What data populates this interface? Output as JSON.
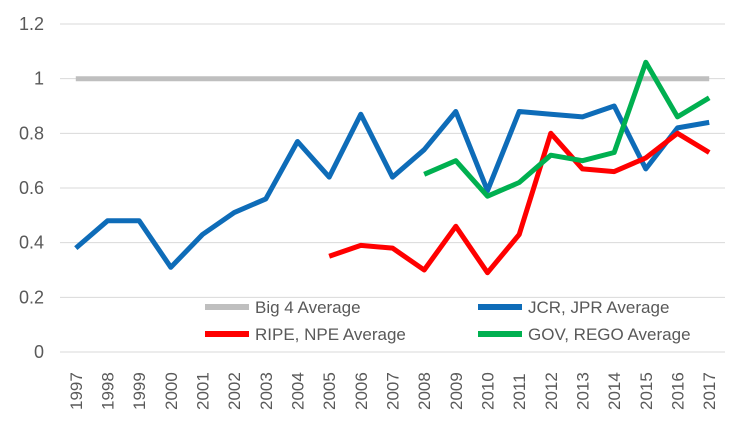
{
  "chart_data": {
    "type": "line",
    "title": "",
    "xlabel": "",
    "ylabel": "",
    "x": [
      "1997",
      "1998",
      "1999",
      "2000",
      "2001",
      "2002",
      "2003",
      "2004",
      "2005",
      "2006",
      "2007",
      "2008",
      "2009",
      "2010",
      "2011",
      "2012",
      "2013",
      "2014",
      "2015",
      "2016",
      "2017"
    ],
    "ylim": [
      0,
      1.2
    ],
    "yticks": [
      0,
      0.2,
      0.4,
      0.6,
      0.8,
      1,
      1.2
    ],
    "ytick_labels": [
      "0",
      "0.2",
      "0.4",
      "0.6",
      "0.8",
      "1",
      "1.2"
    ],
    "grid": true,
    "legend_position": "bottom-inside",
    "series": [
      {
        "name": "Big 4 Average",
        "color": "#bfbfbf",
        "values": [
          1,
          1,
          1,
          1,
          1,
          1,
          1,
          1,
          1,
          1,
          1,
          1,
          1,
          1,
          1,
          1,
          1,
          1,
          1,
          1,
          1
        ]
      },
      {
        "name": "JCR, JPR Average",
        "color": "#0e6cb8",
        "values": [
          0.38,
          0.48,
          0.48,
          0.31,
          0.43,
          0.51,
          0.56,
          0.77,
          0.64,
          0.87,
          0.64,
          0.74,
          0.88,
          0.59,
          0.88,
          0.87,
          0.86,
          0.9,
          0.67,
          0.82,
          0.84
        ]
      },
      {
        "name": "RIPE, NPE Average",
        "color": "#ff0000",
        "values": [
          null,
          null,
          null,
          null,
          null,
          null,
          null,
          null,
          0.35,
          0.39,
          0.38,
          0.3,
          0.46,
          0.29,
          0.43,
          0.8,
          0.67,
          0.66,
          0.71,
          0.8,
          0.73
        ]
      },
      {
        "name": "GOV, REGO Average",
        "color": "#00b050",
        "values": [
          null,
          null,
          null,
          null,
          null,
          null,
          null,
          null,
          null,
          null,
          null,
          0.65,
          0.7,
          0.57,
          0.62,
          0.72,
          0.7,
          0.73,
          1.06,
          0.86,
          0.93
        ]
      }
    ]
  }
}
